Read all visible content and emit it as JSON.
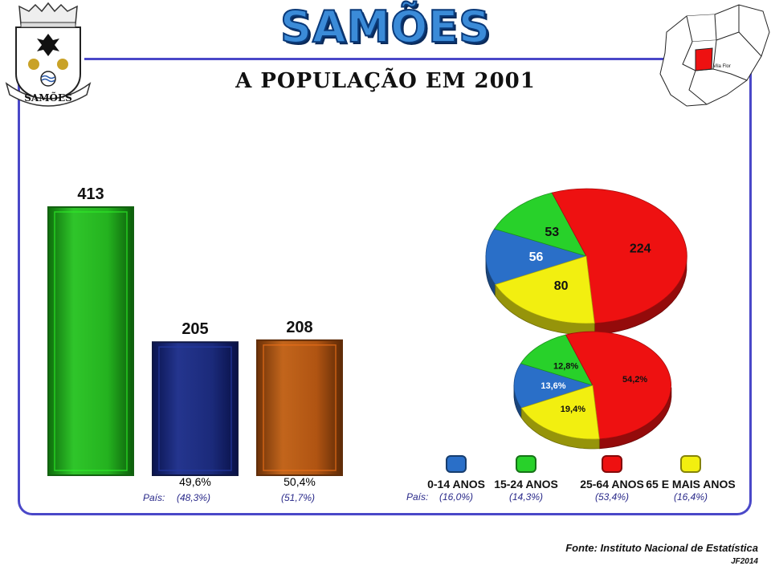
{
  "header": {
    "title": "SAMÕES",
    "subtitle": "A POPULAÇÃO EM 2001",
    "crest_label": "SAMÕES",
    "map_label": "Vila Flor"
  },
  "colors": {
    "frame": "#4a48c8",
    "total": "#22b01e",
    "male": "#1b2a7a",
    "female": "#b05412",
    "age_0_14": "#2a6fc8",
    "age_15_24": "#28d12a",
    "age_25_64": "#ee1111",
    "age_65": "#f2ef10"
  },
  "chart_data": [
    {
      "type": "bar",
      "categories": [
        "",
        "",
        ""
      ],
      "values": [
        413,
        205,
        208
      ],
      "data_labels": [
        "413",
        "205",
        "208"
      ],
      "sub_labels": [
        "",
        "49,6%",
        "50,4%"
      ],
      "country_prefix": "País:",
      "country_labels": [
        "",
        "(48,3%)",
        "(51,7%)"
      ],
      "ylim": [
        0,
        413
      ]
    },
    {
      "type": "pie",
      "labels": [
        "0-14 ANOS",
        "15-24 ANOS",
        "25-64 ANOS",
        "65 E MAIS ANOS"
      ],
      "values": [
        56,
        53,
        224,
        80
      ],
      "data_labels": [
        "56",
        "53",
        "224",
        "80"
      ]
    },
    {
      "type": "pie",
      "labels": [
        "0-14 ANOS",
        "15-24 ANOS",
        "25-64 ANOS",
        "65 E MAIS ANOS"
      ],
      "values": [
        13.6,
        12.8,
        54.2,
        19.4
      ],
      "data_labels": [
        "13,6%",
        "12,8%",
        "54,2%",
        "19,4%"
      ]
    }
  ],
  "legend": {
    "country_prefix": "País:",
    "items": [
      {
        "label": "0-14 ANOS",
        "country": "(16,0%)"
      },
      {
        "label": "15-24 ANOS",
        "country": "(14,3%)"
      },
      {
        "label": "25-64 ANOS",
        "country": "(53,4%)"
      },
      {
        "label": "65 E MAIS ANOS",
        "country": "(16,4%)"
      }
    ]
  },
  "footer": {
    "source": "Fonte: Instituto Nacional de Estatística",
    "credit": "JF2014"
  }
}
